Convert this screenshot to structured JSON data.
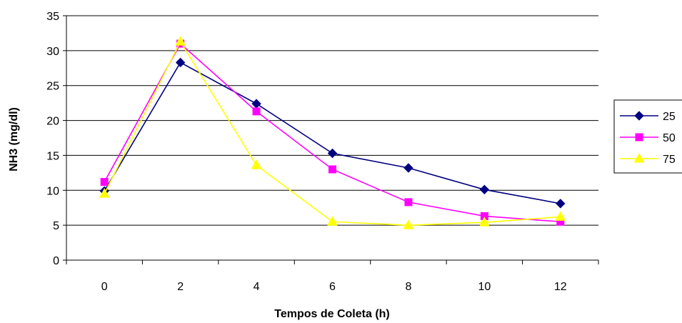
{
  "chart_data": {
    "type": "line",
    "xlabel": "Tempos de Coleta (h)",
    "ylabel": "NH3 (mg/dl)",
    "x": [
      0,
      2,
      4,
      6,
      8,
      10,
      12
    ],
    "ylim": [
      0,
      35
    ],
    "yticks": [
      0,
      5,
      10,
      15,
      20,
      25,
      30,
      35
    ],
    "grid": true,
    "legend": "right",
    "series": [
      {
        "name": "25",
        "color": "#000080",
        "marker": "diamond",
        "values": [
          9.9,
          28.3,
          22.4,
          15.3,
          13.2,
          10.1,
          8.1
        ]
      },
      {
        "name": "50",
        "color": "#ff00ff",
        "marker": "square",
        "values": [
          11.2,
          31.0,
          21.3,
          13.0,
          8.3,
          6.3,
          5.5
        ]
      },
      {
        "name": "75",
        "color": "#ffff00",
        "marker": "triangle",
        "values": [
          9.5,
          31.3,
          13.6,
          5.5,
          5.0,
          5.4,
          6.2
        ]
      }
    ]
  }
}
